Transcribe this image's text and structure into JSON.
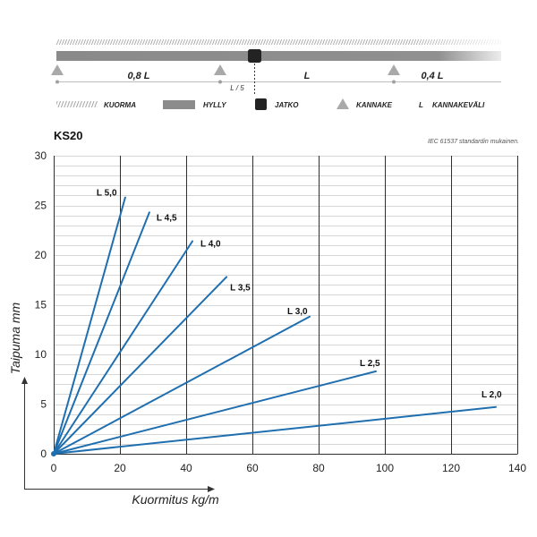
{
  "diagram": {
    "spans": [
      "0,8 L",
      "L",
      "0,4 L"
    ],
    "joint_offset_label": "L / 5"
  },
  "legend": [
    {
      "icon": "hatch-icon",
      "label": "KUORMA"
    },
    {
      "icon": "shelf-bar-icon",
      "label": "HYLLY"
    },
    {
      "icon": "joint-square-icon",
      "label": "JATKO"
    },
    {
      "icon": "support-triangle-icon",
      "label": "KANNAKE"
    },
    {
      "letter": "L",
      "label": "KANNAKEVÄLI"
    }
  ],
  "colors": {
    "series_line": "#1f6fb0",
    "shelf": "#8c8c8c",
    "joint": "#232323",
    "support": "#a9a9a9",
    "major_grid": "#2f2f2f",
    "minor_grid": "#d6d6d6"
  },
  "chart_data": {
    "type": "line",
    "title": "KS20",
    "note": "IEC 61537 standardin mukainen.",
    "xlabel": "Kuormitus kg/m",
    "ylabel": "Taipuma mm",
    "xlim": [
      0,
      140
    ],
    "ylim": [
      0,
      30
    ],
    "xticks": [
      0,
      20,
      40,
      60,
      80,
      100,
      120,
      140
    ],
    "yticks": [
      0,
      5,
      10,
      15,
      20,
      25,
      30
    ],
    "grid": true,
    "series": [
      {
        "name": "L 5,0",
        "x": [
          0,
          21.6
        ],
        "y": [
          0,
          25.8
        ]
      },
      {
        "name": "L 4,5",
        "x": [
          0,
          28.9
        ],
        "y": [
          0,
          24.3
        ]
      },
      {
        "name": "L 4,0",
        "x": [
          0,
          41.9
        ],
        "y": [
          0,
          21.4
        ]
      },
      {
        "name": "L 3,5",
        "x": [
          0,
          52.2
        ],
        "y": [
          0,
          17.8
        ]
      },
      {
        "name": "L 3,0",
        "x": [
          0,
          77.3
        ],
        "y": [
          0,
          13.8
        ]
      },
      {
        "name": "L 2,5",
        "x": [
          0,
          97.3
        ],
        "y": [
          0,
          8.3
        ]
      },
      {
        "name": "L 2,0",
        "x": [
          0,
          133.5
        ],
        "y": [
          0,
          4.7
        ]
      }
    ]
  }
}
